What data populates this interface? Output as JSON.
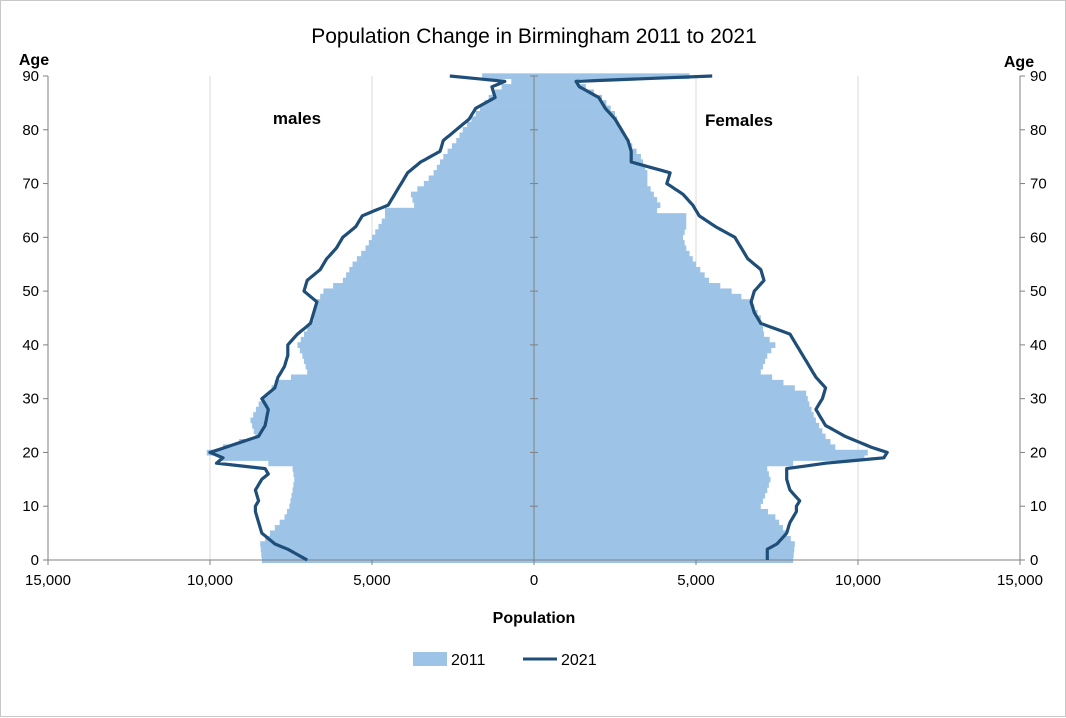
{
  "chart_data": {
    "type": "bar",
    "subtype": "population-pyramid",
    "title": "Population Change in Birmingham 2011 to 2021",
    "xlabel": "Population",
    "ylabel_left": "Age",
    "ylabel_right": "Age",
    "annotations": {
      "males": "males",
      "females": "Females"
    },
    "xlim": [
      -15000,
      15000
    ],
    "ylim": [
      0,
      90
    ],
    "x_ticks": [
      {
        "value": -15000,
        "label": "15,000"
      },
      {
        "value": -10000,
        "label": "10,000"
      },
      {
        "value": -5000,
        "label": "5,000"
      },
      {
        "value": 0,
        "label": "0"
      },
      {
        "value": 5000,
        "label": "5,000"
      },
      {
        "value": 10000,
        "label": "10,000"
      },
      {
        "value": 15000,
        "label": "15,000"
      }
    ],
    "y_ticks": [
      0,
      10,
      20,
      30,
      40,
      50,
      60,
      70,
      80,
      90
    ],
    "gridlines": "vertical",
    "legend_position": "bottom",
    "colors": {
      "2011": "#9dc3e6",
      "2021": "#1f4e79",
      "grid": "#d9d9d9",
      "axis": "#808080"
    },
    "series": [
      {
        "name": "2011",
        "style": "bars",
        "age_knots": [
          0,
          3,
          5,
          8,
          10,
          13,
          15,
          17,
          18,
          19,
          20,
          21,
          23,
          26,
          29,
          31,
          33,
          35,
          38,
          40,
          42,
          45,
          48,
          50,
          52,
          55,
          58,
          60,
          62,
          64,
          65,
          66,
          68,
          70,
          72,
          75,
          78,
          80,
          83,
          86,
          88,
          89,
          90
        ],
        "males": [
          8400,
          8450,
          8150,
          7700,
          7550,
          7450,
          7400,
          7450,
          8200,
          9700,
          10100,
          9600,
          8600,
          8750,
          8500,
          8200,
          8000,
          7000,
          7150,
          7300,
          7100,
          6800,
          6700,
          6500,
          5900,
          5600,
          5200,
          5000,
          4800,
          4600,
          4600,
          3700,
          3800,
          3400,
          3100,
          2800,
          2400,
          2200,
          1800,
          1400,
          1000,
          700,
          1600
        ],
        "females": [
          8000,
          8050,
          7800,
          7450,
          7000,
          7200,
          7300,
          7200,
          8000,
          10200,
          10300,
          9300,
          9000,
          8700,
          8500,
          8400,
          7700,
          7000,
          7200,
          7450,
          7100,
          7000,
          6700,
          6100,
          5400,
          5000,
          4700,
          4600,
          4700,
          4700,
          3800,
          3900,
          3700,
          3500,
          3500,
          3300,
          2900,
          2700,
          2500,
          2100,
          1600,
          1400,
          4800
        ]
      },
      {
        "name": "2021",
        "style": "line",
        "age_knots": [
          0,
          2,
          3,
          5,
          7,
          9,
          10,
          11,
          13,
          15,
          16,
          17,
          18,
          19,
          20,
          21,
          23,
          25,
          28,
          30,
          32,
          34,
          36,
          38,
          40,
          42,
          44,
          46,
          48,
          50,
          52,
          54,
          56,
          58,
          60,
          62,
          64,
          66,
          68,
          70,
          72,
          74,
          76,
          78,
          80,
          82,
          84,
          86,
          88,
          89,
          90
        ],
        "males": [
          7000,
          7600,
          8000,
          8400,
          8500,
          8600,
          8600,
          8500,
          8600,
          8400,
          8200,
          8300,
          9800,
          9600,
          10000,
          9500,
          8500,
          8300,
          8200,
          8400,
          8000,
          7900,
          7700,
          7600,
          7600,
          7300,
          6900,
          6800,
          6700,
          7100,
          7000,
          6600,
          6400,
          6100,
          5900,
          5500,
          5300,
          4500,
          4300,
          4100,
          3900,
          3500,
          2900,
          2800,
          2400,
          2000,
          1800,
          1200,
          1300,
          900,
          2600
        ],
        "females": [
          7200,
          7200,
          7500,
          7800,
          7900,
          8100,
          8100,
          8200,
          7900,
          7800,
          7800,
          7800,
          9000,
          10800,
          10900,
          10400,
          9600,
          9000,
          8700,
          8900,
          9000,
          8700,
          8500,
          8300,
          8100,
          7900,
          7000,
          6800,
          6700,
          6800,
          7100,
          7000,
          6600,
          6400,
          6200,
          5600,
          5100,
          4900,
          4600,
          4100,
          4200,
          3000,
          3000,
          2900,
          2700,
          2500,
          2200,
          2000,
          1400,
          1300,
          5500
        ]
      }
    ]
  }
}
